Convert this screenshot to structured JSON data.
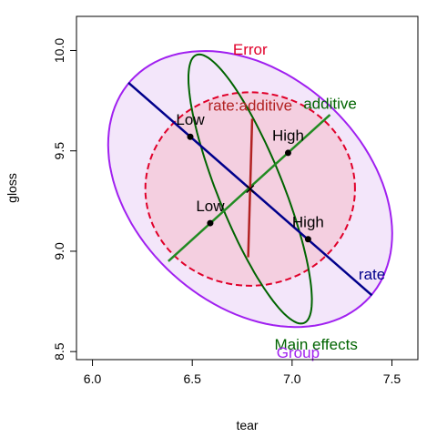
{
  "chart_data": {
    "type": "scatter",
    "title": "",
    "xlabel": "tear",
    "ylabel": "gloss",
    "xlim": [
      5.92,
      7.63
    ],
    "ylim": [
      8.46,
      10.17
    ],
    "xticks": [
      "6.0",
      "6.5",
      "7.0",
      "7.5"
    ],
    "yticks": [
      "8.5",
      "9.0",
      "9.5",
      "10.0"
    ],
    "grid": false,
    "legend": "none",
    "center": {
      "x": 6.79,
      "y": 9.31
    },
    "ellipses": [
      {
        "name": "Group",
        "color": "#a020f0",
        "fill": "#f3e6fa",
        "dashed": false,
        "cx": 6.79,
        "cy": 9.31,
        "rx": 0.805,
        "ry": 0.575,
        "angle_deg": -42.0
      },
      {
        "name": "Error",
        "color": "#e0002a",
        "fill": "#f4cfe0",
        "dashed": true,
        "cx": 6.79,
        "cy": 9.31,
        "rx": 0.525,
        "ry": 0.482,
        "angle_deg": 0
      },
      {
        "name": "Main effects",
        "color": "#006400",
        "fill": "none",
        "dashed": false,
        "cx": 6.79,
        "cy": 9.31,
        "rx": 0.72,
        "ry": 0.163,
        "angle_deg": -68.0
      }
    ],
    "lines": [
      {
        "name": "rate",
        "color": "#00008b",
        "from": [
          6.18,
          9.84
        ],
        "to": [
          7.4,
          8.78
        ]
      },
      {
        "name": "additive",
        "color": "#228b22",
        "from": [
          6.38,
          8.95
        ],
        "to": [
          7.19,
          9.68
        ]
      },
      {
        "name": "rate:additive",
        "color": "#b22222",
        "from": [
          6.78,
          8.97
        ],
        "to": [
          6.8,
          9.66
        ]
      }
    ],
    "points": [
      {
        "label": "Low",
        "x": 6.49,
        "y": 9.57,
        "label_x": 6.49,
        "label_y": 9.63,
        "color": "#000000"
      },
      {
        "label": "High",
        "x": 7.08,
        "y": 9.06,
        "label_x": 7.08,
        "label_y": 9.12,
        "color": "#000000"
      },
      {
        "label": "Low",
        "x": 6.59,
        "y": 9.14,
        "label_x": 6.59,
        "label_y": 9.2,
        "color": "#000000"
      },
      {
        "label": "High",
        "x": 6.98,
        "y": 9.49,
        "label_x": 6.98,
        "label_y": 9.55,
        "color": "#000000"
      }
    ],
    "annotations": [
      {
        "text": "Error",
        "x": 6.79,
        "y": 9.98,
        "color": "#e0002a"
      },
      {
        "text": "rate:additive",
        "x": 6.79,
        "y": 9.7,
        "color": "#b22222"
      },
      {
        "text": "additive",
        "x": 7.19,
        "y": 9.71,
        "color": "#006400"
      },
      {
        "text": "rate",
        "x": 7.4,
        "y": 8.86,
        "color": "#00008b"
      },
      {
        "text": "Main effects",
        "x": 7.12,
        "y": 8.51,
        "color": "#006400"
      },
      {
        "text": "Group",
        "x": 7.03,
        "y": 8.47,
        "color": "#a020f0"
      }
    ]
  }
}
